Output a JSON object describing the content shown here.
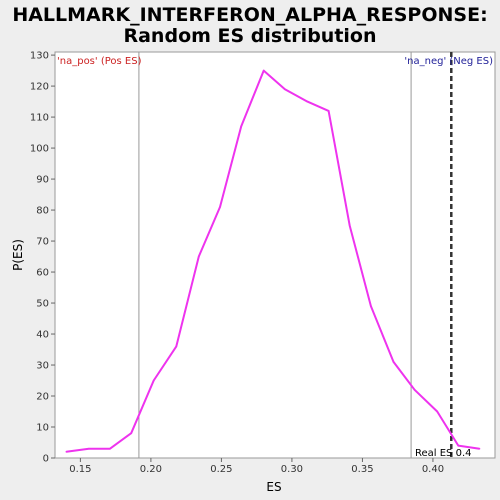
{
  "chart_data": {
    "type": "line",
    "title_line1": "HALLMARK_INTERFERON_ALPHA_RESPONSE:",
    "title_line2": "Random ES distribution",
    "xlabel": "ES",
    "ylabel": "P(ES)",
    "xlim": [
      0.132,
      0.444
    ],
    "ylim": [
      0,
      131
    ],
    "x_ticks": [
      0.15,
      0.2,
      0.25,
      0.3,
      0.35,
      0.4
    ],
    "x_tick_labels": [
      "0.15",
      "0.20",
      "0.25",
      "0.30",
      "0.35",
      "0.40"
    ],
    "y_ticks": [
      0,
      10,
      20,
      30,
      40,
      50,
      60,
      70,
      80,
      90,
      100,
      110,
      120,
      130
    ],
    "grid": false,
    "series": [
      {
        "color": "#ee33ee",
        "x": [
          0.14,
          0.156,
          0.171,
          0.186,
          0.202,
          0.218,
          0.234,
          0.249,
          0.264,
          0.28,
          0.295,
          0.311,
          0.326,
          0.341,
          0.356,
          0.372,
          0.387,
          0.403,
          0.418,
          0.433
        ],
        "y": [
          2,
          3,
          3,
          8,
          25,
          36,
          65,
          81,
          107,
          125,
          119,
          115,
          112,
          75,
          49,
          31,
          22,
          15,
          4,
          3
        ]
      }
    ],
    "vlines": [
      {
        "x": 0.1915,
        "color": "#999999",
        "style": "solid"
      },
      {
        "x": 0.3845,
        "color": "#999999",
        "style": "solid"
      },
      {
        "x": 0.413,
        "color": "#333333",
        "style": "dashed"
      }
    ],
    "annotations": {
      "pos_label": "'na_pos' (Pos ES)",
      "pos_color": "#cc2222",
      "neg_label": "'na_neg' (Neg ES)",
      "neg_color": "#222299",
      "real_es_label": "Real ES 0.4"
    }
  }
}
